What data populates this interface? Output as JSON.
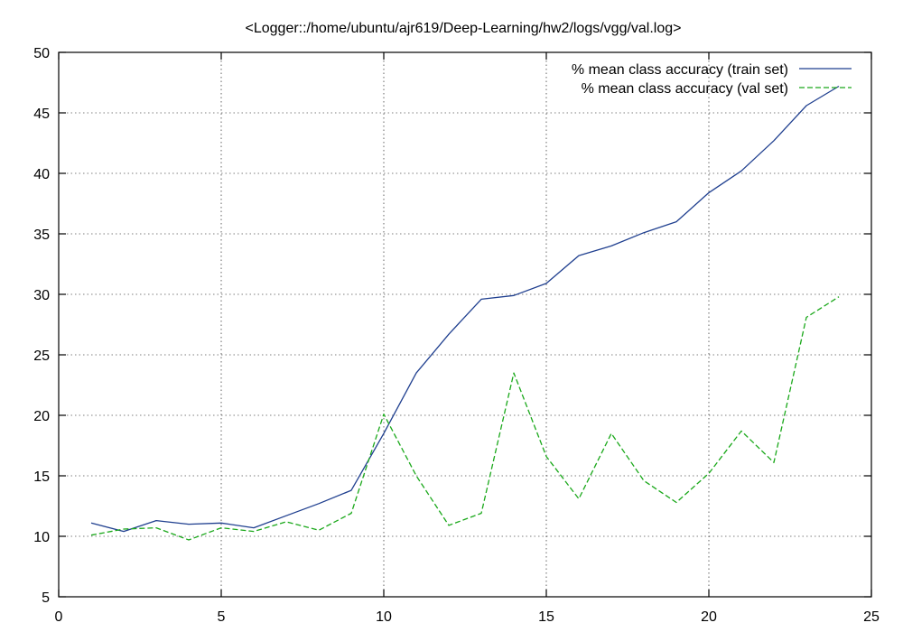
{
  "chart_data": {
    "type": "line",
    "title": "<Logger::/home/ubuntu/ajr619/Deep-Learning/hw2/logs/vgg/val.log>",
    "xlim": [
      0,
      25
    ],
    "ylim": [
      5,
      50
    ],
    "x_ticks": [
      0,
      5,
      10,
      15,
      20,
      25
    ],
    "y_ticks": [
      5,
      10,
      15,
      20,
      25,
      30,
      35,
      40,
      45,
      50
    ],
    "grid": true,
    "legend_position": "top-right",
    "x": [
      1,
      2,
      3,
      4,
      5,
      6,
      7,
      8,
      9,
      10,
      11,
      12,
      13,
      14,
      15,
      16,
      17,
      18,
      19,
      20,
      21,
      22,
      23,
      24
    ],
    "series": [
      {
        "name": "% mean class accuracy (train set)",
        "color": "#1f3f8f",
        "dash": "solid",
        "values": [
          11.1,
          10.4,
          11.3,
          11.0,
          11.1,
          10.7,
          11.7,
          12.7,
          13.8,
          18.5,
          23.5,
          26.7,
          29.6,
          29.9,
          30.9,
          33.2,
          34.0,
          35.1,
          36.0,
          38.4,
          40.2,
          42.7,
          45.6,
          47.2
        ]
      },
      {
        "name": "% mean class accuracy (val set)",
        "color": "#1aa81a",
        "dash": "dashed",
        "values": [
          10.1,
          10.6,
          10.7,
          9.7,
          10.7,
          10.4,
          11.2,
          10.5,
          11.9,
          20.1,
          15.0,
          10.9,
          11.9,
          23.5,
          16.6,
          13.1,
          18.5,
          14.6,
          12.8,
          15.2,
          18.7,
          16.1,
          28.1,
          29.8
        ]
      }
    ]
  }
}
